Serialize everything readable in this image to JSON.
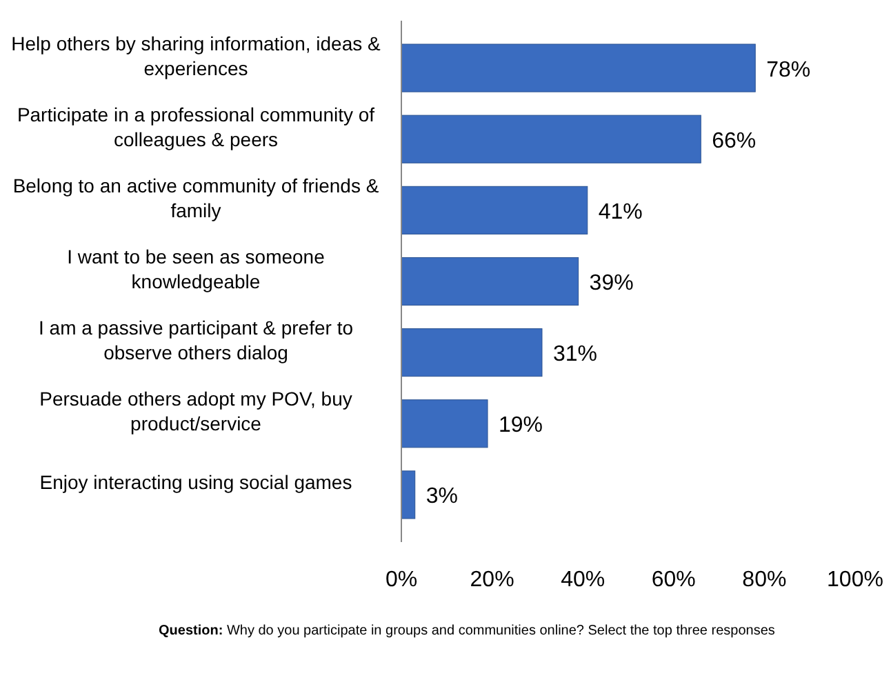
{
  "chart_data": {
    "type": "bar",
    "orientation": "horizontal",
    "categories": [
      "Help others by sharing information, ideas & experiences",
      "Participate in a professional community of colleagues & peers",
      "Belong to an active community of friends & family",
      "I want to be seen as someone knowledgeable",
      "I am a passive participant & prefer to observe others dialog",
      "Persuade others adopt my POV, buy product/service",
      "Enjoy interacting  using social games"
    ],
    "values": [
      78,
      66,
      41,
      39,
      31,
      19,
      3
    ],
    "value_labels": [
      "78%",
      "66%",
      "41%",
      "39%",
      "31%",
      "19%",
      "3%"
    ],
    "color": "#3a6cc0",
    "xlim": [
      0,
      100
    ],
    "xticks": [
      {
        "value": 0,
        "label": "0%"
      },
      {
        "value": 20,
        "label": "20%"
      },
      {
        "value": 40,
        "label": "40%"
      },
      {
        "value": 60,
        "label": "60%"
      },
      {
        "value": 80,
        "label": "80%"
      },
      {
        "value": 100,
        "label": "100%"
      }
    ],
    "grid": false,
    "annotations": [
      "Question: Why do you participate in groups and communities online? Select the top three responses"
    ]
  }
}
